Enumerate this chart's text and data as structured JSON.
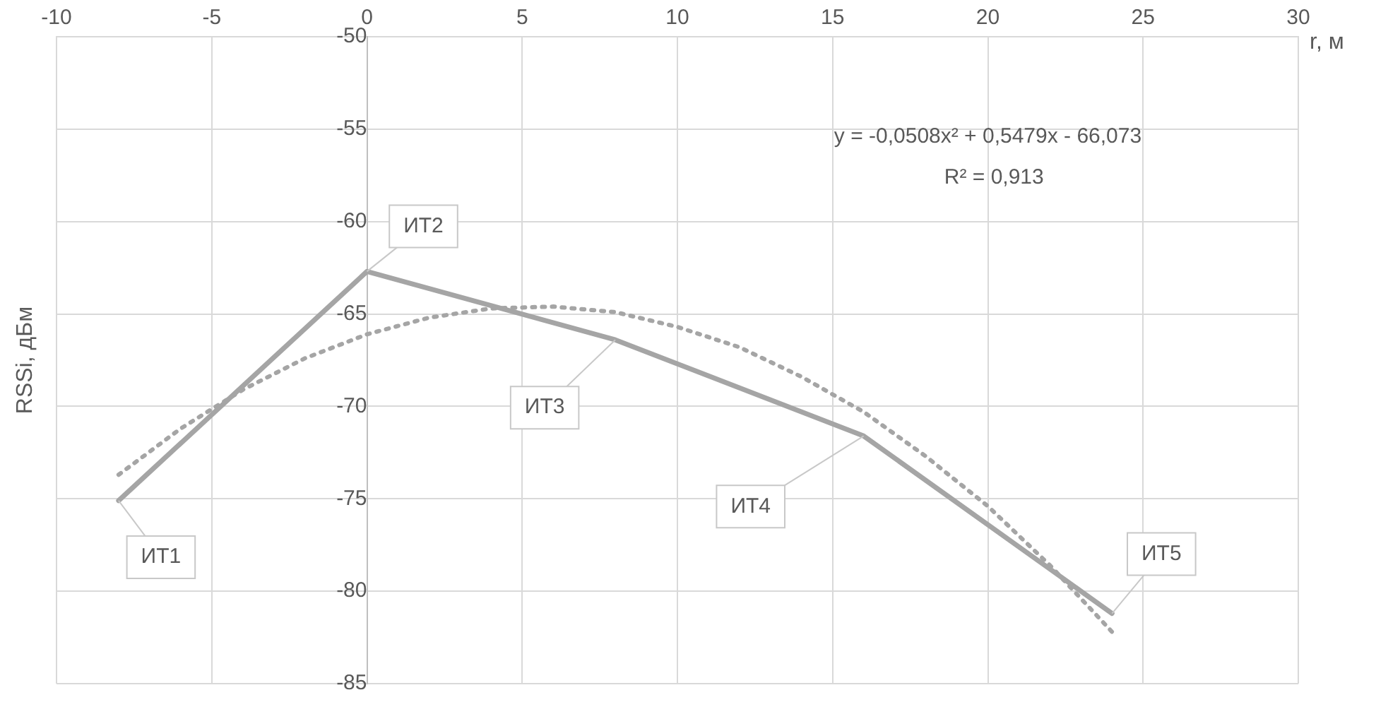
{
  "chart_data": {
    "type": "line",
    "xlabel": "r, м",
    "ylabel": "RSSi, дБм",
    "xlim": [
      -10,
      30
    ],
    "xticks": [
      -10,
      -5,
      0,
      5,
      10,
      15,
      20,
      25,
      30
    ],
    "ylim": [
      -85,
      -50
    ],
    "yticks": [
      -85,
      -80,
      -75,
      -70,
      -65,
      -60,
      -55,
      -50
    ],
    "grid": true,
    "legend": false,
    "marker": "none",
    "series": [
      {
        "color": "#a5a5a5",
        "line_style": "solid",
        "x": [
          -8,
          0,
          8,
          16,
          24
        ],
        "values": [
          -75.1,
          -62.7,
          -66.4,
          -71.6,
          -81.2
        ]
      },
      {
        "type": "line",
        "color": "#a5a5a5",
        "line_style": "dotted",
        "x": [
          -8,
          -6,
          -4,
          -2,
          0,
          2,
          4,
          6,
          8,
          10,
          12,
          14,
          16,
          18,
          20,
          22,
          24
        ],
        "values": [
          -73.7,
          -71.2,
          -69.1,
          -67.4,
          -66.1,
          -65.2,
          -64.7,
          -64.6,
          -64.9,
          -65.7,
          -66.8,
          -68.4,
          -70.3,
          -72.7,
          -75.4,
          -78.6,
          -82.2
        ]
      }
    ],
    "annotations": [
      {
        "text": "ИТ1",
        "x": -8,
        "y": -75.1
      },
      {
        "text": "ИТ2",
        "x": 0,
        "y": -62.7
      },
      {
        "text": "ИТ3",
        "x": 8,
        "y": -66.4
      },
      {
        "text": "ИТ4",
        "x": 16,
        "y": -71.6
      },
      {
        "text": "ИТ5",
        "x": 24,
        "y": -81.2
      },
      "y = -0,0508x² + 0,5479x - 66,073",
      "R² = 0,913"
    ]
  }
}
